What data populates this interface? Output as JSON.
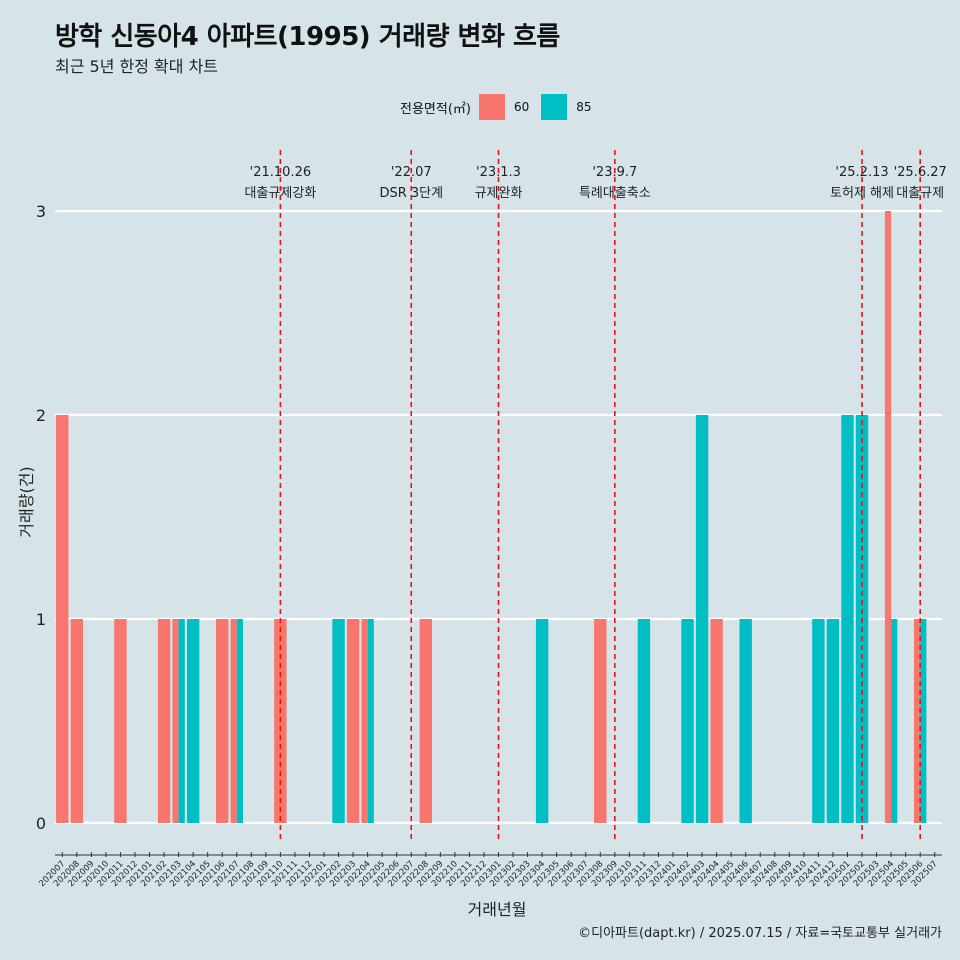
{
  "title": "방학 신동아4 아파트(1995) 거래량 변화 흐름",
  "subtitle": "최근 5년 한정 확대 차트",
  "legend": {
    "title": "전용면적(㎡)",
    "items": [
      {
        "label": "60",
        "color": "#f8766d"
      },
      {
        "label": "85",
        "color": "#00bfc4"
      }
    ]
  },
  "caption": "©디아파트(dapt.kr) / 2025.07.15 / 자료=국토교통부 실거래가",
  "chart_data": {
    "type": "bar",
    "xlabel": "거래년월",
    "ylabel": "거래량(건)",
    "ylim": [
      0,
      3
    ],
    "yticks": [
      0,
      1,
      2,
      3
    ],
    "grid": "horizontal",
    "legend_position": "top",
    "categories": [
      "202007",
      "202008",
      "202009",
      "202010",
      "202011",
      "202012",
      "202101",
      "202102",
      "202103",
      "202104",
      "202105",
      "202106",
      "202107",
      "202108",
      "202109",
      "202110",
      "202111",
      "202112",
      "202201",
      "202202",
      "202203",
      "202204",
      "202205",
      "202206",
      "202207",
      "202208",
      "202209",
      "202210",
      "202211",
      "202212",
      "202301",
      "202302",
      "202303",
      "202304",
      "202305",
      "202306",
      "202307",
      "202308",
      "202309",
      "202310",
      "202311",
      "202312",
      "202401",
      "202402",
      "202403",
      "202404",
      "202405",
      "202406",
      "202407",
      "202408",
      "202409",
      "202410",
      "202411",
      "202412",
      "202501",
      "202502",
      "202503",
      "202504",
      "202505",
      "202506",
      "202507"
    ],
    "series": [
      {
        "name": "60",
        "color": "#f8766d",
        "values": [
          2,
          1,
          0,
          0,
          1,
          0,
          0,
          1,
          1,
          0,
          0,
          1,
          1,
          0,
          0,
          1,
          0,
          0,
          0,
          0,
          1,
          1,
          0,
          0,
          0,
          1,
          0,
          0,
          0,
          0,
          0,
          0,
          0,
          0,
          0,
          0,
          0,
          1,
          0,
          0,
          0,
          0,
          0,
          0,
          0,
          1,
          0,
          0,
          0,
          0,
          0,
          0,
          0,
          0,
          0,
          0,
          0,
          3,
          0,
          1,
          0
        ]
      },
      {
        "name": "85",
        "color": "#00bfc4",
        "values": [
          0,
          0,
          0,
          0,
          0,
          0,
          0,
          0,
          1,
          1,
          0,
          0,
          1,
          0,
          0,
          0,
          0,
          0,
          0,
          1,
          0,
          1,
          0,
          0,
          0,
          0,
          0,
          0,
          0,
          0,
          0,
          0,
          0,
          1,
          0,
          0,
          0,
          0,
          0,
          0,
          1,
          0,
          0,
          1,
          2,
          0,
          0,
          1,
          0,
          0,
          0,
          0,
          1,
          1,
          2,
          2,
          0,
          1,
          0,
          1,
          0
        ]
      }
    ],
    "annotations": [
      {
        "date": "'21.10.26",
        "text": "대출규제강화",
        "x": "202110"
      },
      {
        "date": "'22.07",
        "text": "DSR 3단계",
        "x": "202207"
      },
      {
        "date": "'23.1.3",
        "text": "규제완화",
        "x": "202301"
      },
      {
        "date": "'23.9.7",
        "text": "특례대출축소",
        "x": "202309"
      },
      {
        "date": "'25.2.13",
        "text": "토허제 해제",
        "x": "202502"
      },
      {
        "date": "'25.6.27",
        "text": "대출규제",
        "x": "202506"
      }
    ]
  }
}
